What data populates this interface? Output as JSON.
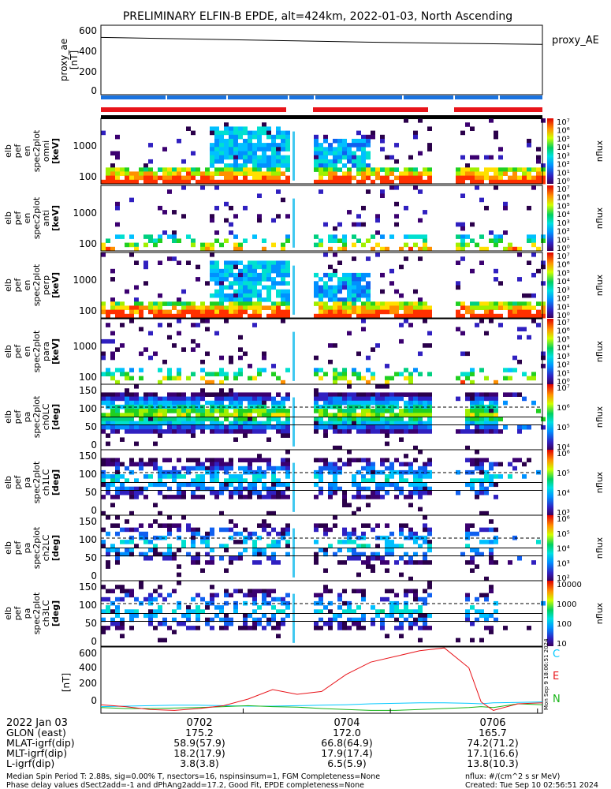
{
  "title": "PRELIMINARY ELFIN-B EPDE, alt=424km, 2022-01-03, North Ascending",
  "colors": {
    "red": "#e8141a",
    "blue": "#1a73e0",
    "black": "#000000",
    "cyan": "#00c8ff",
    "green": "#18b418"
  },
  "proxy_ae": {
    "ylabel_lines": [
      "proxy_ae",
      "[nT]"
    ],
    "legend": "proxy_AE",
    "yticks": [
      "600",
      "400",
      "200",
      "0"
    ],
    "ylim": [
      0,
      600
    ],
    "x_min": [
      0,
      180
    ],
    "values": [
      545,
      530,
      515,
      500,
      488,
      478
    ]
  },
  "spectrograms": [
    {
      "label_lines": [
        "elb",
        "pef",
        "en",
        "spec2plot",
        "omni",
        "[keV]"
      ],
      "yticks": [
        "1000",
        "100"
      ],
      "cbar_kind": "log7",
      "colorbar_ticks": [
        "10⁷",
        "10⁶",
        "10⁵",
        "10⁴",
        "10³",
        "10²",
        "10¹",
        "10⁰"
      ],
      "cbar_label": "nflux"
    },
    {
      "label_lines": [
        "elb",
        "pef",
        "en",
        "spec2plot",
        "anti",
        "[keV]"
      ],
      "yticks": [
        "1000",
        "100"
      ],
      "cbar_kind": "log7",
      "colorbar_ticks": [
        "10⁷",
        "10⁶",
        "10⁵",
        "10⁴",
        "10³",
        "10²",
        "10¹",
        "10⁰"
      ],
      "cbar_label": "nflux"
    },
    {
      "label_lines": [
        "elb",
        "pef",
        "en",
        "spec2plot",
        "perp",
        "[keV]"
      ],
      "yticks": [
        "1000",
        "100"
      ],
      "cbar_kind": "log7",
      "colorbar_ticks": [
        "10⁷",
        "10⁶",
        "10⁵",
        "10⁴",
        "10³",
        "10²",
        "10¹",
        "10⁰"
      ],
      "cbar_label": "nflux"
    },
    {
      "label_lines": [
        "elb",
        "pef",
        "en",
        "spec2plot",
        "para",
        "[keV]"
      ],
      "yticks": [
        "1000",
        "100"
      ],
      "cbar_kind": "log7",
      "colorbar_ticks": [
        "10⁷",
        "10⁶",
        "10⁵",
        "10⁴",
        "10³",
        "10²",
        "10¹",
        "10⁰"
      ],
      "cbar_label": "nflux"
    },
    {
      "label_lines": [
        "elb",
        "pef",
        "pa",
        "spec2plot",
        "ch0LC",
        "[deg]"
      ],
      "yticks": [
        "150",
        "100",
        "50",
        "0"
      ],
      "cbar_kind": "pa0",
      "colorbar_ticks": [
        "10⁷",
        "10⁶",
        "10⁵",
        "10⁴"
      ],
      "cbar_label": "nflux"
    },
    {
      "label_lines": [
        "elb",
        "pef",
        "pa",
        "spec2plot",
        "ch1LC",
        "[deg]"
      ],
      "yticks": [
        "150",
        "100",
        "50",
        "0"
      ],
      "cbar_kind": "pa1",
      "colorbar_ticks": [
        "10⁶",
        "10⁵",
        "10⁴",
        "10³"
      ],
      "cbar_label": "nflux"
    },
    {
      "label_lines": [
        "elb",
        "pef",
        "pa",
        "spec2plot",
        "ch2LC",
        "[deg]"
      ],
      "yticks": [
        "150",
        "100",
        "50",
        "0"
      ],
      "cbar_kind": "pa2",
      "colorbar_ticks": [
        "10⁶",
        "10⁵",
        "10⁴",
        "10³",
        "10²"
      ],
      "cbar_label": "nflux"
    },
    {
      "label_lines": [
        "elb",
        "pef",
        "pa",
        "spec2plot",
        "ch3LC",
        "[deg]"
      ],
      "yticks": [
        "150",
        "100",
        "50",
        "0"
      ],
      "cbar_kind": "pa3",
      "colorbar_ticks": [
        "10000",
        "1000",
        "100",
        "10"
      ],
      "cbar_label": "nflux"
    }
  ],
  "field_panel": {
    "ylabel": "[nT]",
    "yticks": [
      "600",
      "400",
      "200",
      "0"
    ],
    "ylim": [
      -60,
      640
    ],
    "legend": [
      "C",
      "E",
      "N"
    ],
    "legend_colors": [
      "#00c8ff",
      "#e8141a",
      "#18b418"
    ],
    "x_min": [
      0,
      10,
      20,
      30,
      40,
      50,
      60,
      70,
      80,
      90,
      100,
      110,
      120,
      130,
      140,
      150,
      155,
      160,
      170,
      180
    ],
    "E": [
      30,
      10,
      -20,
      -30,
      -10,
      20,
      90,
      190,
      140,
      170,
      350,
      480,
      540,
      600,
      630,
      420,
      60,
      -30,
      40,
      50
    ],
    "C": [
      10,
      15,
      20,
      25,
      25,
      20,
      15,
      15,
      20,
      25,
      30,
      40,
      45,
      50,
      50,
      45,
      40,
      50,
      55,
      60
    ],
    "N": [
      0,
      -10,
      -10,
      -5,
      0,
      10,
      20,
      10,
      5,
      -10,
      -20,
      -30,
      -30,
      -20,
      -10,
      0,
      10,
      0,
      40,
      30
    ]
  },
  "side_stamp": "Mon Sep 9 18:06:51 2024",
  "x_axis": {
    "date_label": "2022 Jan 03",
    "ticks": [
      "0702",
      "0704",
      "0706"
    ],
    "tick_minutes": [
      58,
      118,
      178
    ],
    "window_min": [
      0,
      180
    ],
    "rows": [
      {
        "label": "GLON (east)",
        "values": [
          "175.2",
          "172.0",
          "165.7"
        ]
      },
      {
        "label": "MLAT-igrf(dip)",
        "values": [
          "58.9(57.9)",
          "66.8(64.9)",
          "74.2(71.2)"
        ]
      },
      {
        "label": "MLT-igrf(dip)",
        "values": [
          "18.2(17.9)",
          "17.9(17.4)",
          "17.1(16.6)"
        ]
      },
      {
        "label": "L-igrf(dip)",
        "values": [
          "3.8(3.8)",
          "6.5(5.9)",
          "13.8(10.3)"
        ]
      }
    ]
  },
  "footer": {
    "line1_left": "Median Spin Period T: 2.88s, sig=0.00% T, nsectors=16, nspinsinsum=1, FGM Completeness=None",
    "line1_right": "nflux: #/(cm^2 s sr MeV)",
    "line2_left": "Phase delay values dSect2add=-1 and dPhAng2add=17.2, Good Fit, EPDE completeness=None",
    "line2_right": "Created: Tue Sep 10 02:56:51 2024"
  }
}
